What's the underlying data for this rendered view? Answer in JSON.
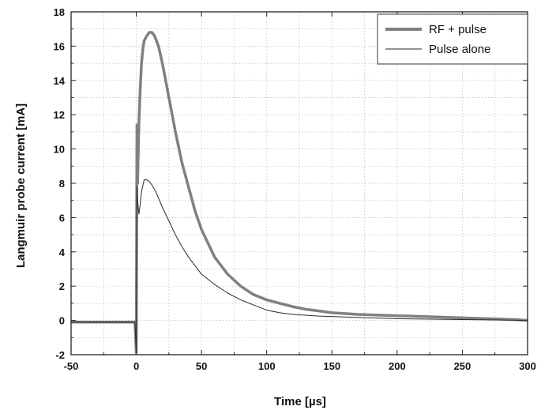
{
  "chart_data": {
    "type": "line",
    "title": "",
    "xlabel": "Time [µs]",
    "ylabel": "Langmuir probe current   [mA]",
    "xlim": [
      -50,
      300
    ],
    "ylim": [
      -2,
      18
    ],
    "xticks": [
      -50,
      0,
      50,
      100,
      150,
      200,
      250,
      300
    ],
    "yticks": [
      -2,
      0,
      2,
      4,
      6,
      8,
      10,
      12,
      14,
      16,
      18
    ],
    "grid": true,
    "legend_position": "top-right",
    "series": [
      {
        "name": "RF + pulse",
        "color": "#808080",
        "style": "thick",
        "x": [
          -50,
          -1,
          0,
          0.5,
          1,
          2,
          3,
          4,
          5,
          6,
          8,
          10,
          12,
          14,
          17,
          20,
          25,
          30,
          35,
          40,
          45,
          50,
          60,
          70,
          80,
          90,
          100,
          110,
          120,
          130,
          140,
          150,
          170,
          190,
          210,
          230,
          250,
          270,
          290,
          300
        ],
        "y": [
          -0.1,
          -0.1,
          -1.9,
          11.4,
          8.0,
          11.5,
          13.5,
          15.0,
          15.8,
          16.3,
          16.6,
          16.8,
          16.8,
          16.6,
          16.0,
          15.0,
          13.0,
          11.0,
          9.2,
          7.8,
          6.4,
          5.3,
          3.7,
          2.7,
          2.0,
          1.5,
          1.2,
          1.0,
          0.8,
          0.65,
          0.55,
          0.45,
          0.35,
          0.3,
          0.25,
          0.2,
          0.15,
          0.1,
          0.05,
          0.0
        ]
      },
      {
        "name": "Pulse alone",
        "color": "#2a2a2a",
        "style": "thin",
        "x": [
          -50,
          -1,
          0,
          0.5,
          1,
          2,
          3,
          4,
          6,
          8,
          10,
          12,
          15,
          20,
          25,
          30,
          35,
          40,
          45,
          50,
          60,
          70,
          80,
          90,
          100,
          110,
          120,
          140,
          160,
          180,
          200,
          250,
          300
        ],
        "y": [
          -0.1,
          -0.1,
          -1.9,
          7.8,
          7.0,
          6.2,
          6.8,
          7.5,
          8.2,
          8.2,
          8.1,
          7.9,
          7.5,
          6.6,
          5.8,
          5.0,
          4.3,
          3.7,
          3.2,
          2.7,
          2.1,
          1.6,
          1.2,
          0.9,
          0.6,
          0.45,
          0.35,
          0.25,
          0.2,
          0.15,
          0.1,
          0.05,
          0.0
        ]
      }
    ]
  }
}
